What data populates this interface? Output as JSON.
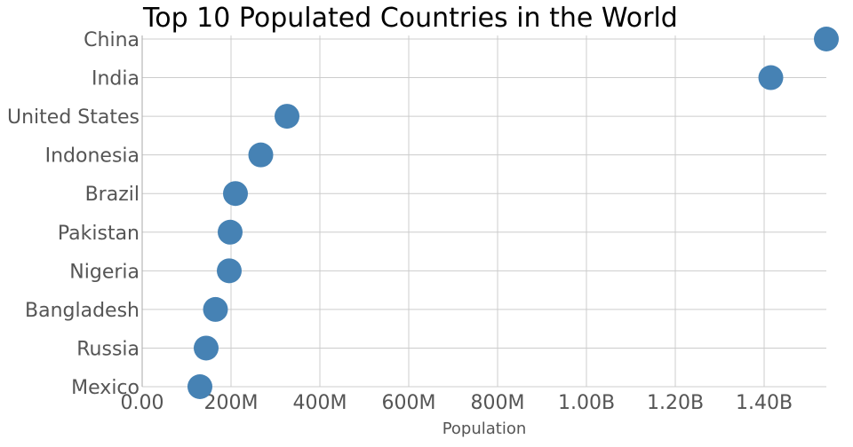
{
  "chart_data": {
    "type": "scatter",
    "title": "Top 10 Populated Countries in the World",
    "xlabel": "Population",
    "ylabel": "",
    "categories": [
      "China",
      "India",
      "United States",
      "Indonesia",
      "Brazil",
      "Pakistan",
      "Nigeria",
      "Bangladesh",
      "Russia",
      "Mexico"
    ],
    "series": [
      {
        "values": [
          1540000000,
          1415000000,
          326000000,
          267000000,
          210000000,
          198000000,
          196000000,
          165000000,
          144000000,
          130000000
        ]
      }
    ],
    "xlim": [
      0,
      1540000000
    ],
    "x_ticks": [
      0,
      200000000,
      400000000,
      600000000,
      800000000,
      1000000000,
      1200000000,
      1400000000
    ],
    "x_tick_labels": [
      "0.00",
      "200M",
      "400M",
      "600M",
      "800M",
      "1.00B",
      "1.20B",
      "1.40B"
    ],
    "grid": true,
    "colors": {
      "marker": "#4682b4"
    }
  }
}
